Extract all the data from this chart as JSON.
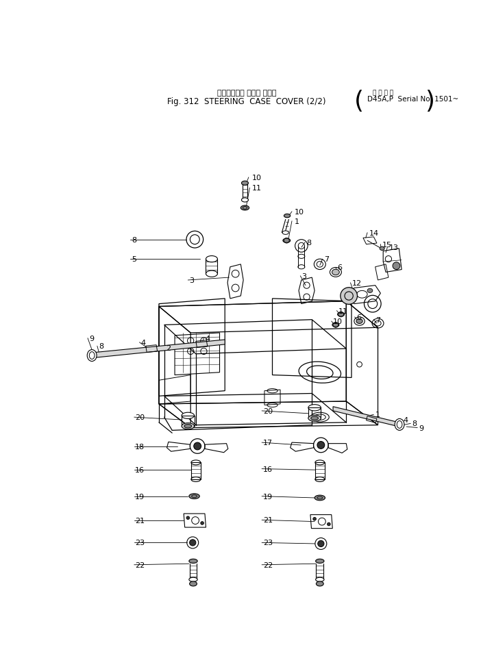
{
  "bg_color": "#ffffff",
  "line_color": "#000000",
  "text_color": "#000000",
  "title_jp": "ステアリング ケース カバー",
  "title_en": "Fig. 312  STEERING  CASE  COVER (2/2)",
  "title_right_top": "適 用 号 機",
  "title_right_bot": "D45A,P  Serial No. 1501~"
}
